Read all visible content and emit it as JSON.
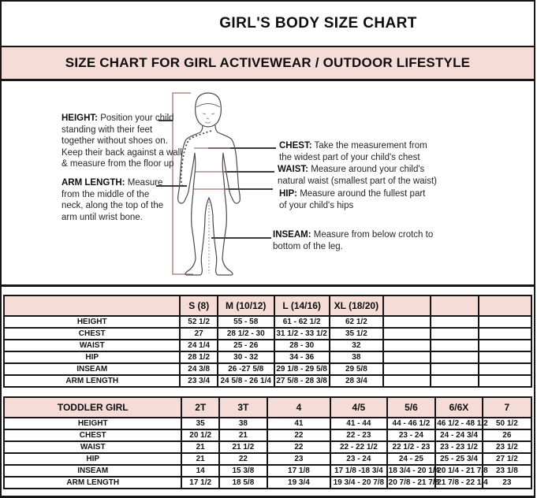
{
  "header": {
    "title": "GIRL'S BODY SIZE CHART",
    "banner": "SIZE CHART FOR GIRL ACTIVEWEAR / OUTDOOR LIFESTYLE"
  },
  "colors": {
    "accent_pink": "#f5dcd7",
    "border_black": "#161616",
    "measure_line_brown": "#a1756b"
  },
  "diagram": {
    "annotations": {
      "height": {
        "label": "HEIGHT:",
        "text": "Position your child\nstanding with their feet\ntogether without shoes on.\nKeep their back against a wall\n& measure from the floor up"
      },
      "arm_length": {
        "label": "ARM LENGTH:",
        "text": "Measure\nfrom the middle of the\nneck, along the top of the\narm until wrist bone."
      },
      "chest": {
        "label": "CHEST:",
        "text": "Take the measurement from\nthe widest part of your child's chest"
      },
      "waist": {
        "label": "WAIST:",
        "text": "Measure around your child's\nnatural waist (smallest part of the waist)"
      },
      "hip": {
        "label": "HIP:",
        "text": "Measure around the fullest part\nof your child's hips"
      },
      "inseam": {
        "label": "INSEAM:",
        "text": "Measure from below crotch to\nbottom of the leg."
      }
    }
  },
  "girl_table": {
    "columns": [
      "",
      "S (8)",
      "M (10/12)",
      "L (14/16)",
      "XL (18/20)",
      "",
      "",
      ""
    ],
    "rows": [
      {
        "label": "HEIGHT",
        "values": [
          "52 1/2",
          "55 - 58",
          "61 -  62 1/2",
          "62 1/2",
          "",
          "",
          ""
        ]
      },
      {
        "label": "CHEST",
        "values": [
          "27",
          "28 1/2 - 30",
          "31 1/2 - 33 1/2",
          "35 1/2",
          "",
          "",
          ""
        ]
      },
      {
        "label": "WAIST",
        "values": [
          "24 1/4",
          "25  - 26",
          "28 - 30",
          "32",
          "",
          "",
          ""
        ]
      },
      {
        "label": "HIP",
        "values": [
          "28 1/2",
          "30 - 32",
          "34 - 36",
          "38",
          "",
          "",
          ""
        ]
      },
      {
        "label": "INSEAM",
        "values": [
          "24 3/8",
          "26 -27 5/8",
          "29 1/8 - 29 5/8",
          "29 5/8",
          "",
          "",
          ""
        ]
      },
      {
        "label": "ARM LENGTH",
        "values": [
          "23 3/4",
          "24 5/8 - 26 1/4",
          "27 5/8  - 28 3/8",
          "28 3/4",
          "",
          "",
          ""
        ]
      }
    ]
  },
  "toddler_table": {
    "columns": [
      "TODDLER GIRL",
      "2T",
      "3T",
      "4",
      "4/5",
      "5/6",
      "6/6X",
      "7"
    ],
    "rows": [
      {
        "label": "HEIGHT",
        "values": [
          "35",
          "38",
          "41",
          "41 - 44",
          "44  -  46 1/2",
          "46 1/2 - 48 1/2",
          "50 1/2"
        ]
      },
      {
        "label": "CHEST",
        "values": [
          "20 1/2",
          "21",
          "22",
          "22 - 23",
          "23 - 24",
          "24 -  24 3/4",
          "26"
        ]
      },
      {
        "label": "WAIST",
        "values": [
          "21",
          "21 1/2",
          "22",
          "22 - 22 1/2",
          "22 1/2 - 23",
          "23 - 23 1/2",
          "23 1/2"
        ]
      },
      {
        "label": "HIP",
        "values": [
          "21",
          "22",
          "23",
          "23 - 24",
          "24 - 25",
          "25 - 25 3/4",
          "27 1/2"
        ]
      },
      {
        "label": "INSEAM",
        "values": [
          "14",
          "15 3/8",
          "17 1/8",
          "17 1/8 -18 3/4",
          "18 3/4 - 20 1/4",
          "20 1/4 - 21 7/8",
          "23 1/8"
        ]
      },
      {
        "label": "ARM LENGTH",
        "values": [
          "17 1/2",
          "18 5/8",
          "19 3/4",
          "19 3/4 - 20 7/8",
          "20 7/8 - 21 7/8",
          "21 7/8 - 22 1/4",
          "23"
        ]
      }
    ]
  }
}
